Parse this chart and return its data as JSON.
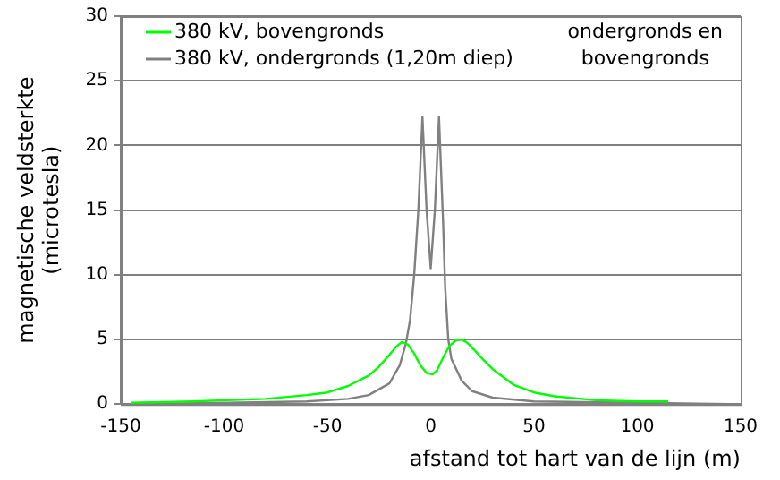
{
  "chart_data": {
    "type": "line",
    "xlabel": "afstand tot hart van de lijn (m)",
    "ylabel": "magnetische veldsterkte\n(microtesla)",
    "annotations": [
      "ondergronds en\nbovengronds"
    ],
    "xlim": [
      -150,
      150
    ],
    "xticks": [
      -150,
      -100,
      -50,
      0,
      50,
      100,
      150
    ],
    "ylim": [
      0,
      30
    ],
    "yticks": [
      0,
      5,
      10,
      15,
      20,
      25,
      30
    ],
    "grid": "y",
    "legend": "top left",
    "marker": "none",
    "line_style": "solid",
    "series": [
      {
        "name": "380 kV, bovengronds",
        "color": "#00ff00",
        "x": [
          -145,
          -115,
          -100,
          -80,
          -60,
          -50,
          -40,
          -30,
          -25,
          -20,
          -17,
          -14,
          -11,
          -8,
          -5,
          -2,
          1,
          3,
          6,
          9,
          12,
          15,
          18,
          21,
          25,
          30,
          40,
          50,
          60,
          80,
          100,
          115
        ],
        "values": [
          0.1,
          0.2,
          0.3,
          0.4,
          0.7,
          0.9,
          1.4,
          2.2,
          2.9,
          3.8,
          4.4,
          4.8,
          4.6,
          3.9,
          3.0,
          2.4,
          2.3,
          2.6,
          3.6,
          4.5,
          4.9,
          5.0,
          4.7,
          4.2,
          3.5,
          2.7,
          1.5,
          0.9,
          0.6,
          0.3,
          0.2,
          0.2
        ]
      },
      {
        "name": "380 kV, ondergronds (1,20m diep)",
        "color": "#808080",
        "x": [
          -145,
          -100,
          -60,
          -40,
          -30,
          -20,
          -15,
          -12,
          -10,
          -8,
          -6,
          -4,
          -2,
          0,
          2,
          4,
          6,
          7,
          8.5,
          10,
          15,
          20,
          30,
          50,
          100,
          145
        ],
        "values": [
          0,
          0.1,
          0.2,
          0.4,
          0.7,
          1.6,
          3,
          4.7,
          6.5,
          10,
          15,
          22.2,
          15,
          10.5,
          15,
          22.2,
          14,
          9,
          5,
          3.5,
          1.8,
          1,
          0.5,
          0.2,
          0.1,
          0
        ]
      }
    ]
  }
}
